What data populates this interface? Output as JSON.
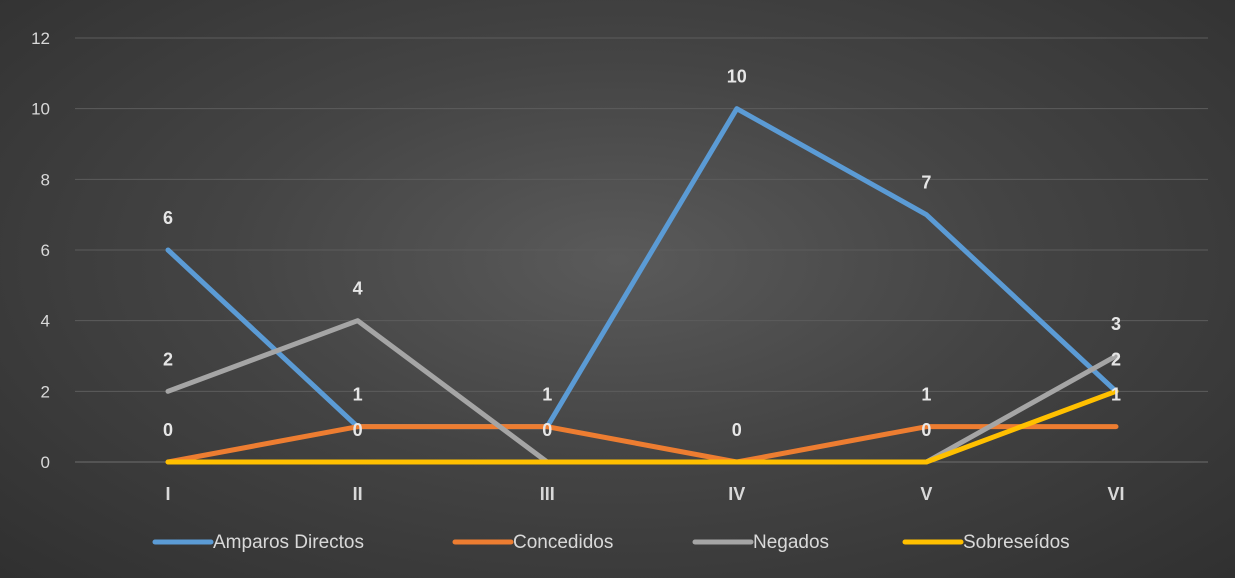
{
  "chart_data": {
    "type": "line",
    "categories": [
      "I",
      "II",
      "III",
      "IV",
      "V",
      "VI"
    ],
    "ylim": [
      0,
      12
    ],
    "yticks": [
      0,
      2,
      4,
      6,
      8,
      10,
      12
    ],
    "grid": true,
    "legend_position": "bottom",
    "series": [
      {
        "name": "Amparos Directos",
        "color": "#5b9bd5",
        "values": [
          6,
          1,
          1,
          10,
          7,
          2
        ],
        "labels": [
          "6",
          "",
          "1",
          "10",
          "7",
          ""
        ]
      },
      {
        "name": "Concedidos",
        "color": "#ed7d31",
        "values": [
          0,
          1,
          1,
          0,
          1,
          1
        ],
        "labels": [
          "0",
          "1",
          "",
          "0",
          "1",
          "1"
        ]
      },
      {
        "name": "Negados",
        "color": "#a5a5a5",
        "values": [
          2,
          4,
          0,
          0,
          0,
          3
        ],
        "labels": [
          "2",
          "4",
          "",
          "",
          "",
          "3"
        ]
      },
      {
        "name": "Sobreseídos",
        "color": "#ffc000",
        "values": [
          0,
          0,
          0,
          0,
          0,
          2
        ],
        "labels": [
          "",
          "0",
          "0",
          "",
          "0",
          "2"
        ]
      }
    ]
  }
}
